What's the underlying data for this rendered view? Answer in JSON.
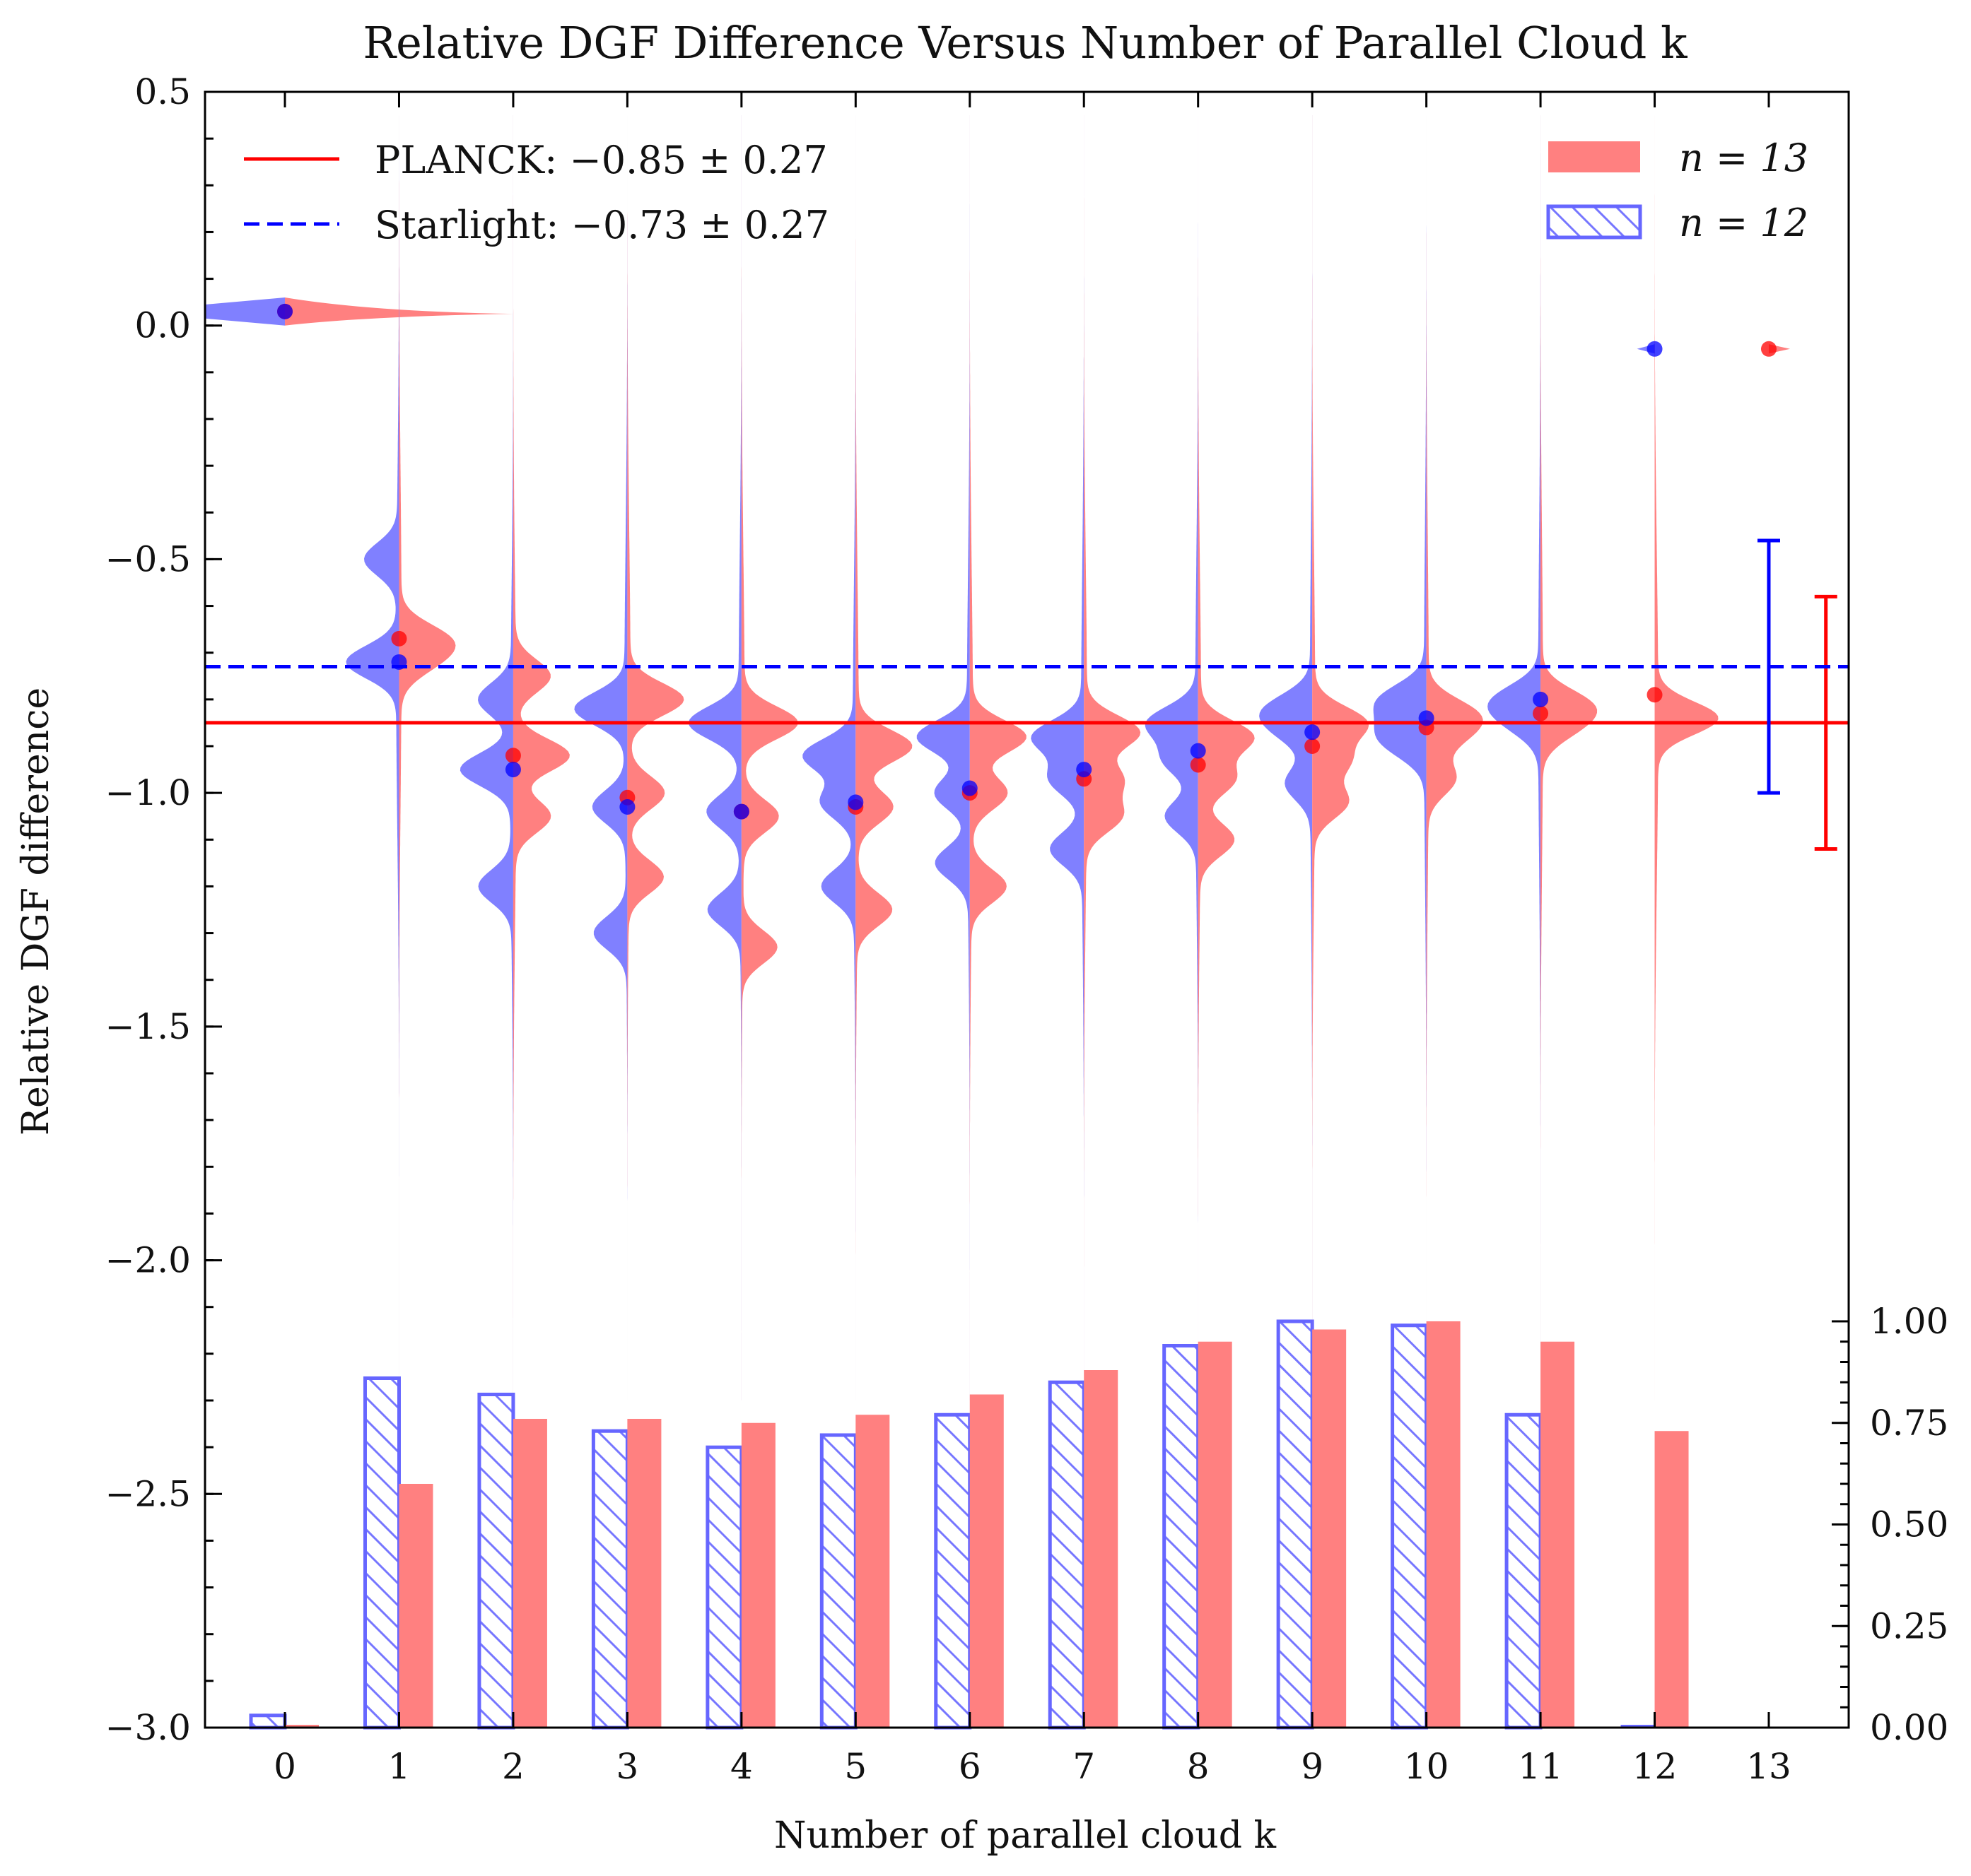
{
  "chart_data": {
    "type": "bar",
    "title": "Relative DGF Difference Versus Number of Parallel Cloud k",
    "xlabel": "Number of parallel cloud k",
    "ylabel": "Relative DGF difference",
    "xlim": [
      -0.7,
      13.7
    ],
    "ylim": [
      -3.0,
      0.5
    ],
    "y2lim": [
      0.0,
      1.0
    ],
    "x_ticks": [
      "0",
      "1",
      "2",
      "3",
      "4",
      "5",
      "6",
      "7",
      "8",
      "9",
      "10",
      "11",
      "12",
      "13"
    ],
    "y_ticks": [
      "0.5",
      "0.0",
      "−0.5",
      "−1.0",
      "−1.5",
      "−2.0",
      "−2.5",
      "−3.0"
    ],
    "y_tick_values": [
      0.5,
      0.0,
      -0.5,
      -1.0,
      -1.5,
      -2.0,
      -2.5,
      -3.0
    ],
    "y2_ticks": [
      "1.00",
      "0.75",
      "0.50",
      "0.25",
      "0.00"
    ],
    "y2_tick_values": [
      1.0,
      0.75,
      0.5,
      0.25,
      0.0
    ],
    "colors": {
      "n13": "#ff0000",
      "n12": "#0000ff"
    },
    "reference_lines": [
      {
        "label": "PLANCK: −0.85 ± 0.27",
        "value": -0.85,
        "err": 0.27,
        "err_x": 13.5,
        "color": "#ff0000",
        "style": "solid"
      },
      {
        "label": "Starlight: −0.73 ± 0.27",
        "value": -0.73,
        "err": 0.27,
        "err_x": 13.0,
        "color": "#0000ff",
        "style": "dashed"
      }
    ],
    "bar_legend": [
      {
        "label": "n = 13",
        "color": "#ff0000",
        "hatch": false
      },
      {
        "label": "n = 12",
        "color": "#0000ff",
        "hatch": true
      }
    ],
    "x": [
      0,
      1,
      2,
      3,
      4,
      5,
      6,
      7,
      8,
      9,
      10,
      11,
      12,
      13
    ],
    "series": [
      {
        "name": "n = 13",
        "color": "#ff0000",
        "bar_values": [
          0.0,
          0.6,
          0.76,
          0.76,
          0.75,
          0.77,
          0.82,
          0.88,
          0.95,
          0.98,
          1.0,
          0.95,
          0.73,
          0.0
        ],
        "medians": [
          0.03,
          -0.67,
          -0.92,
          -1.01,
          -1.04,
          -1.03,
          -1.0,
          -0.97,
          -0.94,
          -0.9,
          -0.86,
          -0.83,
          -0.79,
          -0.05
        ],
        "peaks": [
          [
            0.03
          ],
          [
            -0.67,
            -0.72
          ],
          [
            -0.92,
            -0.75,
            -1.05
          ],
          [
            -0.8,
            -1.0,
            -1.18
          ],
          [
            -0.85,
            -1.05,
            -1.33
          ],
          [
            -0.9,
            -1.03,
            -1.25
          ],
          [
            -0.88,
            -1.0,
            -1.2
          ],
          [
            -0.87,
            -0.97,
            -1.05
          ],
          [
            -0.88,
            -0.97,
            -1.1
          ],
          [
            -0.85,
            -0.93,
            -1.02
          ],
          [
            -0.83,
            -0.88,
            -0.97
          ],
          [
            -0.81,
            -0.86
          ],
          [
            -0.84
          ],
          [
            -0.05
          ]
        ]
      },
      {
        "name": "n = 12",
        "color": "#0000ff",
        "bar_values": [
          0.03,
          0.86,
          0.82,
          0.73,
          0.69,
          0.72,
          0.77,
          0.85,
          0.94,
          1.0,
          0.99,
          0.77,
          0.0,
          0.0
        ],
        "medians": [
          0.03,
          -0.72,
          -0.95,
          -1.03,
          -1.04,
          -1.02,
          -0.99,
          -0.95,
          -0.91,
          -0.87,
          -0.84,
          -0.8,
          -0.05,
          null
        ],
        "peaks": [
          [
            0.03
          ],
          [
            -0.72,
            -0.5
          ],
          [
            -0.95,
            -0.8,
            -1.2
          ],
          [
            -0.82,
            -1.03,
            -1.3
          ],
          [
            -0.85,
            -1.04,
            -1.25
          ],
          [
            -0.92,
            -1.02,
            -1.2
          ],
          [
            -0.88,
            -1.0,
            -1.15
          ],
          [
            -0.88,
            -0.97,
            -1.12
          ],
          [
            -0.85,
            -0.93,
            -1.05
          ],
          [
            -0.82,
            -0.87,
            -0.98
          ],
          [
            -0.8,
            -0.86,
            -0.9
          ],
          [
            -0.8,
            -0.85
          ],
          [
            -0.05
          ],
          []
        ]
      }
    ]
  }
}
